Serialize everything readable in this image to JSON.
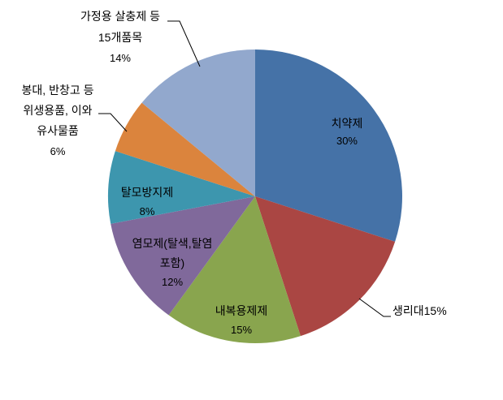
{
  "chart_data": {
    "type": "pie",
    "title": "",
    "unit": "%",
    "direction": "clockwise",
    "start_angle_deg": 0,
    "legend": "none",
    "center": [
      314,
      242
    ],
    "radius": 181,
    "categories": [
      "치약제",
      "생리대",
      "내복용제제",
      "염모제(탈색,탈염 포함)",
      "탈모방지제",
      "봉대, 반창고 등 위생용품, 이와 유사물품",
      "가정용 살충제 등 15개품목"
    ],
    "values": [
      30,
      15,
      15,
      12,
      8,
      6,
      14
    ],
    "slices": [
      {
        "label": "치약제",
        "value": 30,
        "percent_text": "30%",
        "color": "#4572A7",
        "label_placement": "inside"
      },
      {
        "label": "생리대",
        "value": 15,
        "percent_text": "15%",
        "color": "#AA4643",
        "label_placement": "outside-with-leader"
      },
      {
        "label": "내복용제제",
        "value": 15,
        "percent_text": "15%",
        "color": "#89A54E",
        "label_placement": "inside"
      },
      {
        "label": "염모제(탈색,탈염 포함)",
        "value": 12,
        "percent_text": "12%",
        "color": "#80699B",
        "label_placement": "inside"
      },
      {
        "label": "탈모방지제",
        "value": 8,
        "percent_text": "8%",
        "color": "#3D96AE",
        "label_placement": "inside"
      },
      {
        "label": "봉대, 반창고 등 위생용품, 이와 유사물품",
        "value": 6,
        "percent_text": "6%",
        "color": "#DB843D",
        "label_placement": "outside-with-leader"
      },
      {
        "label": "가정용 살충제 등 15개품목",
        "value": 14,
        "percent_text": "14%",
        "color": "#92A8CD",
        "label_placement": "outside-with-leader"
      }
    ]
  },
  "callouts": {
    "toothpaste": [
      "치약제",
      "30%"
    ],
    "sanitary": [
      "생리대15%"
    ],
    "internal": [
      "내복용제제",
      "15%"
    ],
    "hairdye": [
      "염모제(탈색,탈염",
      "포함)",
      "12%"
    ],
    "hairloss": [
      "탈모방지제",
      "8%"
    ],
    "bandage": [
      "봉대, 반창고 등",
      "위생용품, 이와",
      "유사물품",
      "6%"
    ],
    "insecticide": [
      "가정용 살충제 등",
      "15개품목",
      "14%"
    ]
  },
  "colors": {
    "background": "#ffffff",
    "label_text": "#000000",
    "leader_line": "#000000"
  }
}
